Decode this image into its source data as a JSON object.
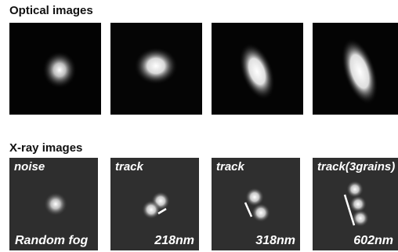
{
  "titles": {
    "optical": "Optical images",
    "xray": "X-ray images"
  },
  "xray_panels": [
    {
      "top_label": "noise",
      "bottom_label": "Random fog"
    },
    {
      "top_label": "track",
      "bottom_label": "218nm"
    },
    {
      "top_label": "track",
      "bottom_label": "318nm"
    },
    {
      "top_label": "track(3grains)",
      "bottom_label": "602nm"
    }
  ]
}
